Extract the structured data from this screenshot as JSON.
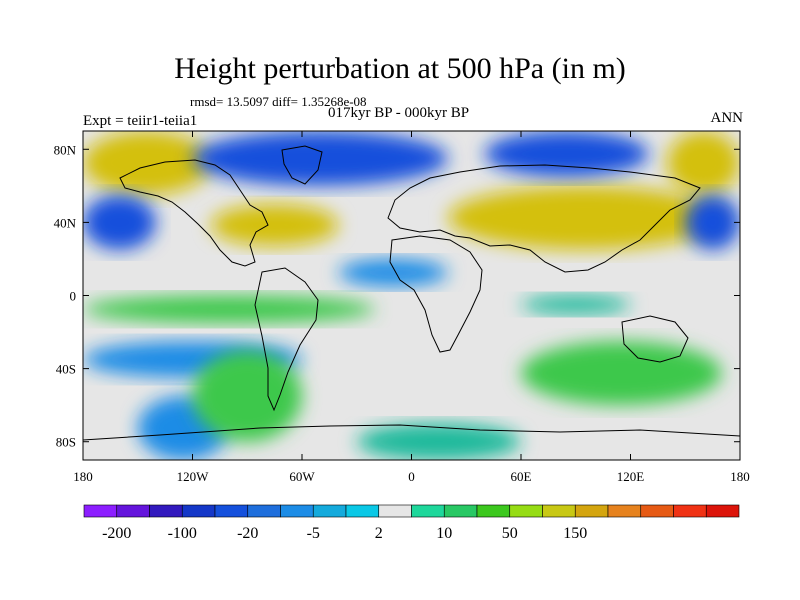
{
  "header": {
    "title": "Height perturbation at 500 hPa (in m)",
    "stats": "rmsd= 13.5097 diff= 1.35268e-08",
    "period": "017kyr BP - 000kyr BP",
    "experiment": "Expt = teiir1-teiia1",
    "season": "ANN"
  },
  "map": {
    "lon_range": [
      -180,
      180
    ],
    "lat_range": [
      -90,
      90
    ],
    "x_ticks": [
      {
        "value": -180,
        "label": "180"
      },
      {
        "value": -120,
        "label": "120W"
      },
      {
        "value": -60,
        "label": "60W"
      },
      {
        "value": 0,
        "label": "0"
      },
      {
        "value": 60,
        "label": "60E"
      },
      {
        "value": 120,
        "label": "120E"
      },
      {
        "value": 180,
        "label": "180"
      }
    ],
    "y_ticks": [
      {
        "value": 80,
        "label": "80N"
      },
      {
        "value": 40,
        "label": "40N"
      },
      {
        "value": 0,
        "label": "0"
      },
      {
        "value": -40,
        "label": "40S"
      },
      {
        "value": -80,
        "label": "80S"
      }
    ],
    "background_color": "#e6e6e6",
    "coastline_color": "#000000",
    "contour_fields": [
      {
        "value": 50,
        "color": "#d4c011",
        "lon": [
          20,
          170
        ],
        "lat": [
          25,
          60
        ]
      },
      {
        "value": 50,
        "color": "#d4c011",
        "lon": [
          -110,
          -40
        ],
        "lat": [
          27,
          50
        ]
      },
      {
        "value": 50,
        "color": "#d4c011",
        "lon": [
          -180,
          -110
        ],
        "lat": [
          55,
          90
        ]
      },
      {
        "value": 50,
        "color": "#d4c011",
        "lon": [
          140,
          180
        ],
        "lat": [
          55,
          90
        ]
      },
      {
        "value": -100,
        "color": "#1450dc",
        "lon": [
          -120,
          20
        ],
        "lat": [
          60,
          90
        ]
      },
      {
        "value": -100,
        "color": "#1450dc",
        "lon": [
          40,
          130
        ],
        "lat": [
          65,
          90
        ]
      },
      {
        "value": -100,
        "color": "#1450dc",
        "lon": [
          -180,
          -140
        ],
        "lat": [
          25,
          55
        ]
      },
      {
        "value": -100,
        "color": "#1450dc",
        "lon": [
          150,
          180
        ],
        "lat": [
          25,
          55
        ]
      },
      {
        "value": -20,
        "color": "#1c8ce6",
        "lon": [
          -40,
          20
        ],
        "lat": [
          5,
          20
        ]
      },
      {
        "value": -20,
        "color": "#1c8ce6",
        "lon": [
          -180,
          -60
        ],
        "lat": [
          -45,
          -25
        ]
      },
      {
        "value": -20,
        "color": "#1c8ce6",
        "lon": [
          -150,
          -100
        ],
        "lat": [
          -90,
          -55
        ]
      },
      {
        "value": 10,
        "color": "#3cc84b",
        "lon": [
          -120,
          -60
        ],
        "lat": [
          -80,
          -30
        ]
      },
      {
        "value": 10,
        "color": "#3cc84b",
        "lon": [
          60,
          170
        ],
        "lat": [
          -60,
          -25
        ]
      },
      {
        "value": 10,
        "color": "#3cc84b",
        "lon": [
          -180,
          -20
        ],
        "lat": [
          -15,
          0
        ]
      },
      {
        "value": 2,
        "color": "#1eb99b",
        "lon": [
          -30,
          60
        ],
        "lat": [
          -90,
          -70
        ]
      },
      {
        "value": 2,
        "color": "#1eb99b",
        "lon": [
          60,
          120
        ],
        "lat": [
          -10,
          0
        ]
      }
    ]
  },
  "colorbar": {
    "colors": [
      "#8c1eff",
      "#6414dc",
      "#3219be",
      "#1437c8",
      "#1450dc",
      "#1e6edc",
      "#1c8ce6",
      "#14aadc",
      "#0ac8e6",
      "#e6e6e6",
      "#1ed79b",
      "#28c864",
      "#3cc81e",
      "#96dc14",
      "#c8c814",
      "#d4a50f",
      "#e6821e",
      "#e65a14",
      "#f03214",
      "#dc140a"
    ],
    "labels": [
      "-200",
      "-100",
      "-20",
      "-5",
      "2",
      "10",
      "50",
      "150"
    ]
  }
}
